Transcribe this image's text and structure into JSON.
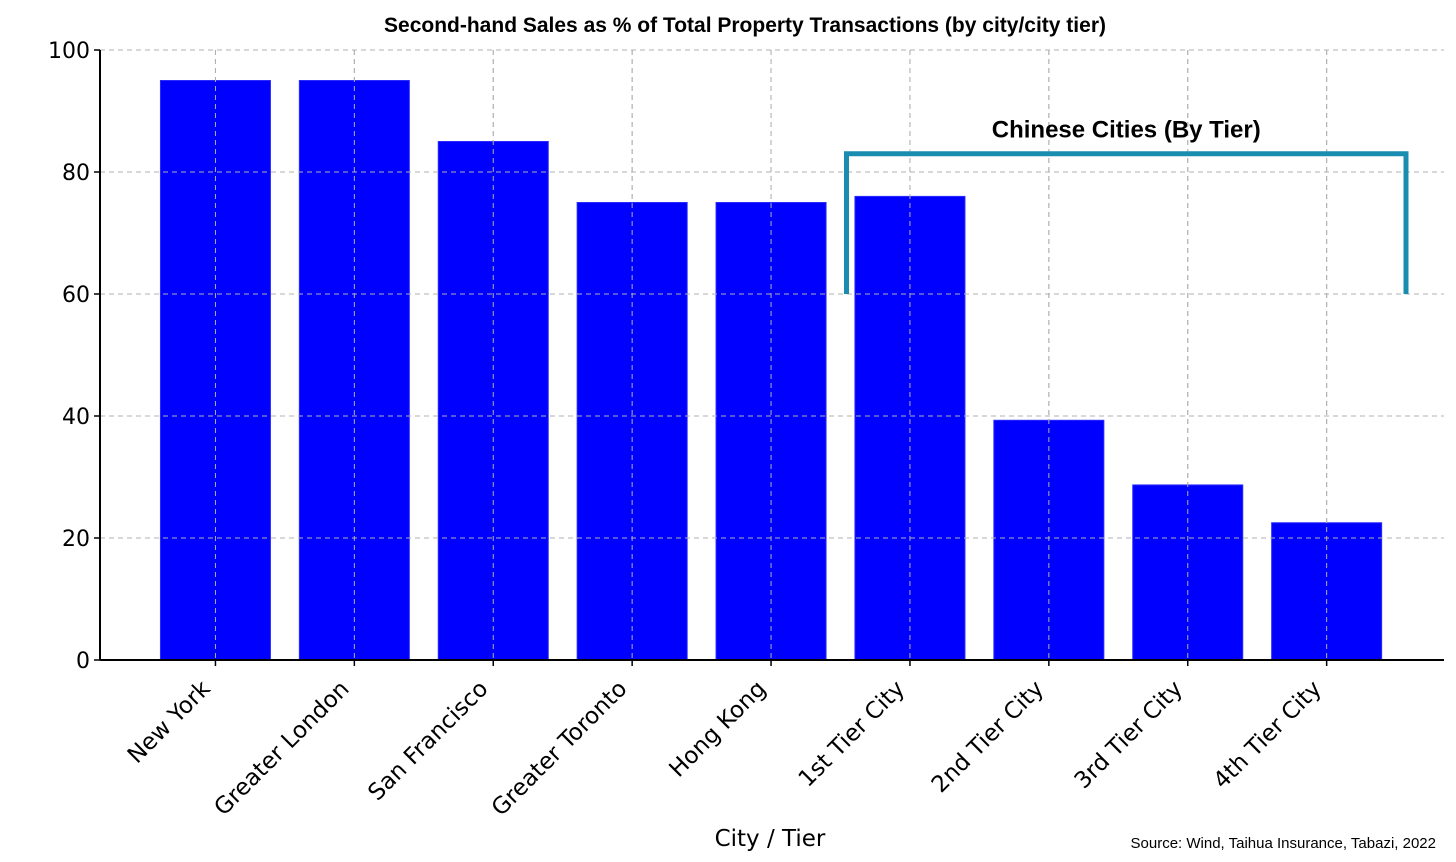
{
  "chart_data": {
    "type": "bar",
    "title": "Second-hand Sales as % of Total Property Transactions (by city/city tier)",
    "xlabel": "City / Tier",
    "ylabel": "",
    "ylim": [
      0,
      100
    ],
    "yticks": [
      0,
      20,
      40,
      60,
      80,
      100
    ],
    "grid": true,
    "categories": [
      "New York",
      "Greater London",
      "San Francisco",
      "Greater Toronto",
      "Hong Kong",
      "1st Tier City",
      "2nd Tier City",
      "3rd Tier City",
      "4th Tier City"
    ],
    "values": [
      95,
      95,
      85,
      75,
      75,
      76,
      39.3,
      28.7,
      22.5
    ],
    "bar_color": "#0000ff",
    "annotation": {
      "text": "Chinese Cities (By Tier)",
      "bracket_color": "#1a8caf",
      "bracket_top": 83,
      "bracket_bottom": 60,
      "start_category": "1st Tier City"
    },
    "source": "Source: Wind, Taihua Insurance, Tabazi, 2022"
  }
}
